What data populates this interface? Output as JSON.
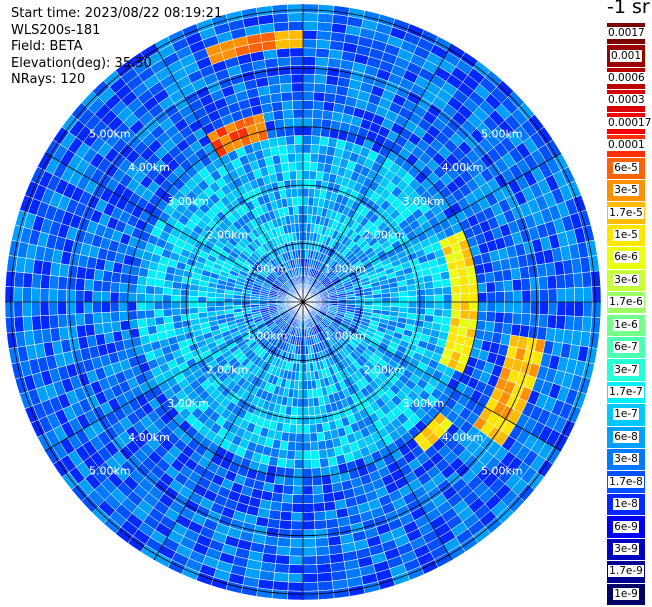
{
  "header": {
    "start_time": "Start time: 2023/08/22 08:19:21",
    "device": "WLS200s-181",
    "field": "Field: BETA",
    "elevation": "Elevation(deg): 35.30",
    "nrays": "NRays: 120"
  },
  "colorbar": {
    "unit": "-1 sr",
    "levels": [
      {
        "label": "0.0017",
        "color": "#7a0000"
      },
      {
        "label": "0.001",
        "color": "#9a0000"
      },
      {
        "label": "0.0006",
        "color": "#b80000"
      },
      {
        "label": "0.0003",
        "color": "#d80000"
      },
      {
        "label": "0.00017",
        "color": "#f00000"
      },
      {
        "label": "0.0001",
        "color": "#ff3000"
      },
      {
        "label": "6e-5",
        "color": "#ff6200"
      },
      {
        "label": "3e-5",
        "color": "#ff9000"
      },
      {
        "label": "1.7e-5",
        "color": "#ffbc00"
      },
      {
        "label": "1e-5",
        "color": "#ffe600"
      },
      {
        "label": "6e-6",
        "color": "#eaff10"
      },
      {
        "label": "3e-6",
        "color": "#c4ff3a"
      },
      {
        "label": "1.7e-6",
        "color": "#9cff62"
      },
      {
        "label": "1e-6",
        "color": "#74ff8a"
      },
      {
        "label": "6e-7",
        "color": "#4cffb2"
      },
      {
        "label": "3e-7",
        "color": "#24ffd8"
      },
      {
        "label": "1.7e-7",
        "color": "#00f0ff"
      },
      {
        "label": "1e-7",
        "color": "#00c8ff"
      },
      {
        "label": "6e-8",
        "color": "#00a0ff"
      },
      {
        "label": "3e-8",
        "color": "#0078ff"
      },
      {
        "label": "1.7e-8",
        "color": "#0050ff"
      },
      {
        "label": "1e-8",
        "color": "#0028ff"
      },
      {
        "label": "6e-9",
        "color": "#0000f0"
      },
      {
        "label": "3e-9",
        "color": "#0000c0"
      },
      {
        "label": "1.7e-9",
        "color": "#000090"
      },
      {
        "label": "1e-9",
        "color": "#000068"
      }
    ]
  },
  "chart_data": {
    "type": "heatmap",
    "projection": "polar PPI",
    "field": "BETA",
    "elevation_deg": 35.3,
    "n_rays": 120,
    "range_rings_km": [
      "1.00km",
      "2.00km",
      "3.00km",
      "4.00km",
      "5.00km"
    ],
    "max_range_km": 5.1,
    "background_value": "3e-8",
    "features": [
      {
        "azimuth_deg": [
          -20,
          0
        ],
        "range_km": [
          4.3,
          4.6
        ],
        "value": "3e-5"
      },
      {
        "azimuth_deg": [
          -30,
          -12
        ],
        "range_km": [
          2.8,
          3.3
        ],
        "value": "6e-5"
      },
      {
        "azimuth_deg": [
          65,
          115
        ],
        "range_km": [
          2.6,
          3.0
        ],
        "value": "1e-5"
      },
      {
        "azimuth_deg": [
          100,
          125
        ],
        "range_km": [
          3.6,
          4.2
        ],
        "value": "1.7e-5"
      },
      {
        "azimuth_deg": [
          130,
          140
        ],
        "range_km": [
          3.0,
          3.3
        ],
        "value": "1e-5"
      }
    ]
  }
}
